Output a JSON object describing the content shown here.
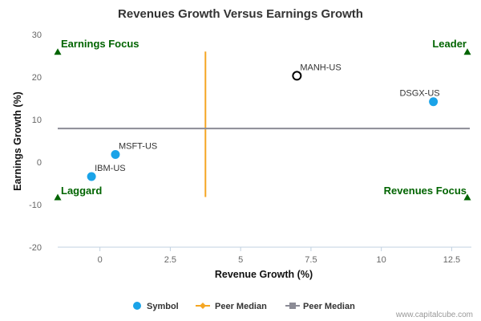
{
  "chart_data": {
    "type": "scatter",
    "title": "Revenues Growth Versus Earnings Growth",
    "xlabel": "Revenue Growth (%)",
    "ylabel": "Earnings Growth (%)",
    "xlim": [
      -1.5,
      13.2
    ],
    "ylim": [
      -20,
      30
    ],
    "x_ticks": [
      "0",
      "2.5",
      "5",
      "7.5",
      "10",
      "12.5"
    ],
    "x_tick_values": [
      0,
      2.5,
      5,
      7.5,
      10,
      12.5
    ],
    "y_ticks": [
      "30",
      "20",
      "10",
      "0",
      "-10",
      "-20"
    ],
    "y_tick_values": [
      30,
      20,
      10,
      0,
      -10,
      -20
    ],
    "grid": false,
    "legend_position": "bottom-center",
    "points": [
      {
        "symbol": "MSFT-US",
        "x": 0.55,
        "y": 1.8,
        "style": "filled"
      },
      {
        "symbol": "IBM-US",
        "x": -0.3,
        "y": -3.4,
        "style": "filled"
      },
      {
        "symbol": "MANH-US",
        "x": 7.0,
        "y": 20.3,
        "style": "hollow"
      },
      {
        "symbol": "DSGX-US",
        "x": 11.85,
        "y": 14.2,
        "style": "filled"
      }
    ],
    "peer_median_revenue_growth": 3.75,
    "peer_median_earnings_growth": 7.9,
    "quadrants": {
      "top_left": "Earnings Focus",
      "top_right": "Leader",
      "bottom_left": "Laggard",
      "bottom_right": "Revenues Focus"
    },
    "quadrant_marker_y": {
      "top": 26,
      "bottom": -8.2
    },
    "legend": [
      {
        "label": "Symbol",
        "kind": "point"
      },
      {
        "label": "Peer Median",
        "kind": "vertical-line"
      },
      {
        "label": "Peer Median",
        "kind": "horizontal-line"
      }
    ],
    "colors": {
      "point": "#1aa3e8",
      "point_hollow_stroke": "#000000",
      "vertical_median": "#f5a623",
      "horizontal_median": "#8c8c96",
      "quadrant": "#006400",
      "axis": "#c0d0e0"
    }
  },
  "credit": "www.capitalcube.com"
}
